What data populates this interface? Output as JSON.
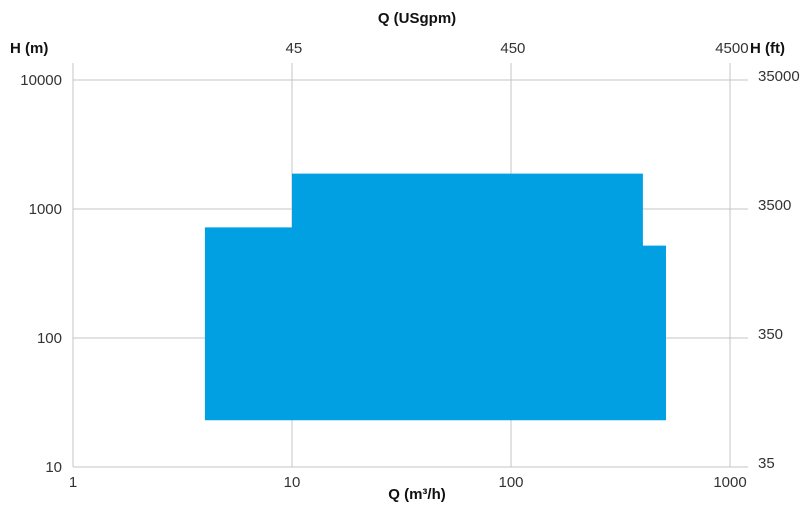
{
  "chart_data": {
    "type": "area",
    "x_scale": "log",
    "y_scale": "log",
    "xlabel": "Q (m³/h)",
    "ylabel": "H (m)",
    "x2label": "Q (USgpm)",
    "y2label": "H (ft)",
    "xlim": [
      1,
      1100
    ],
    "ylim": [
      10,
      12000
    ],
    "x_ticks": [
      {
        "value": 1,
        "label": "1"
      },
      {
        "value": 10,
        "label": "10"
      },
      {
        "value": 100,
        "label": "100"
      },
      {
        "value": 1000,
        "label": "1000"
      }
    ],
    "y_ticks": [
      {
        "value": 10,
        "label": "10"
      },
      {
        "value": 100,
        "label": "100"
      },
      {
        "value": 1000,
        "label": "1000"
      },
      {
        "value": 10000,
        "label": "10000"
      }
    ],
    "x2_ticks": [
      {
        "value": 10.2,
        "label": "45"
      },
      {
        "value": 102,
        "label": "450"
      },
      {
        "value": 1020,
        "label": "4500"
      }
    ],
    "y2_ticks": [
      {
        "value": 10.7,
        "label": "35"
      },
      {
        "value": 107,
        "label": "350"
      },
      {
        "value": 1070,
        "label": "3500"
      },
      {
        "value": 10700,
        "label": "35000"
      }
    ],
    "grid": true,
    "fill_color": "#00a0e3",
    "region": [
      {
        "q": 4,
        "h": 23
      },
      {
        "q": 4,
        "h": 720
      },
      {
        "q": 10,
        "h": 720
      },
      {
        "q": 10,
        "h": 1880
      },
      {
        "q": 400,
        "h": 1880
      },
      {
        "q": 400,
        "h": 520
      },
      {
        "q": 510,
        "h": 520
      },
      {
        "q": 510,
        "h": 23
      }
    ]
  }
}
